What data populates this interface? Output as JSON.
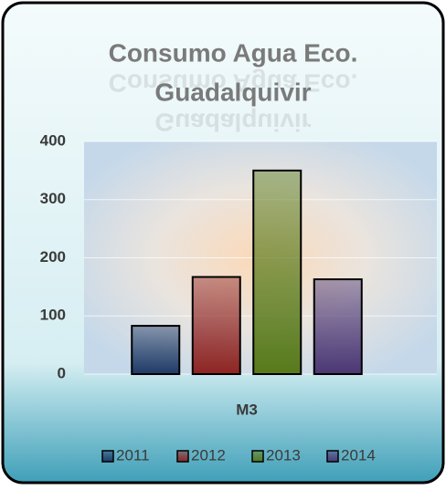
{
  "chart_data": {
    "type": "bar",
    "title": [
      "Consumo Agua Eco.",
      "Guadalquivir"
    ],
    "categories": [
      "M3"
    ],
    "series": [
      {
        "name": "2011",
        "color": "#1f3a66",
        "values": [
          83
        ]
      },
      {
        "name": "2012",
        "color": "#8e2422",
        "values": [
          167
        ]
      },
      {
        "name": "2013",
        "color": "#587a1a",
        "values": [
          350
        ]
      },
      {
        "name": "2014",
        "color": "#4c3774",
        "values": [
          163
        ]
      }
    ],
    "ylim": [
      0,
      400
    ],
    "yticks": [
      0,
      100,
      200,
      300,
      400
    ],
    "grid": true,
    "legend": "bottom"
  }
}
